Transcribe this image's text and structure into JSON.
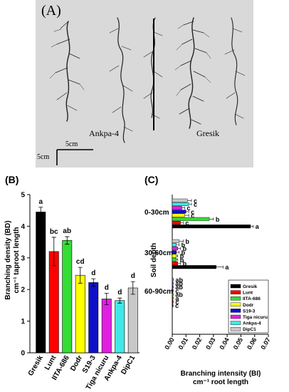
{
  "panel_a": {
    "label": "(A)",
    "left_caption": "Ankpa-4",
    "right_caption": "Gresik",
    "scale_top": "5cm",
    "scale_left": "5cm"
  },
  "colors": {
    "Gresik": "#000000",
    "Lunt": "#ff0000",
    "IITA-686": "#33dd33",
    "Dodr": "#ffff00",
    "S19-3": "#1010c8",
    "Tiga nicuru": "#e020e0",
    "Ankpa-4": "#40e8e8",
    "DipC1": "#c8c8c8"
  },
  "chart_data": [
    {
      "type": "bar",
      "panel_label": "(B)",
      "ylabel_line1": "Branching density (BD)",
      "ylabel_line2": "cm⁻¹ taproot length",
      "ylim": [
        0,
        5
      ],
      "yticks": [
        "0",
        "1",
        "2",
        "3",
        "4",
        "5"
      ],
      "categories": [
        "Gresik",
        "Lunt",
        "IITA-686",
        "Dodr",
        "S19-3",
        "Tiga nicuru",
        "Ankpa-4",
        "DipC1"
      ],
      "values": [
        4.45,
        3.2,
        3.55,
        2.45,
        2.22,
        1.7,
        1.65,
        2.05
      ],
      "errors": [
        0.15,
        0.45,
        0.12,
        0.25,
        0.12,
        0.18,
        0.08,
        0.2
      ],
      "letters": [
        "a",
        "bc",
        "ab",
        "cd",
        "d",
        "d",
        "d",
        "d"
      ]
    },
    {
      "type": "bar",
      "orientation": "horizontal",
      "panel_label": "(C)",
      "ylabel": "Soil depth",
      "xlabel_line1": "Branching intensity (BI)",
      "xlabel_line2": "cm⁻¹ root length",
      "xlim": [
        0,
        0.07
      ],
      "xticks": [
        "0.00",
        "0.01",
        "0.02",
        "0.03",
        "0.04",
        "0.05",
        "0.06",
        "0.07"
      ],
      "groups": [
        "0-30cm",
        "30-60cm",
        "60-90cm"
      ],
      "series_names": [
        "DipC1",
        "Ankpa-4",
        "Tiga nicuru",
        "S19-3",
        "Dodr",
        "IITA-686",
        "Lunt",
        "Gresik"
      ],
      "legend": [
        "Gresik",
        "Lunt",
        "IITA-686",
        "Dodr",
        "S19-3",
        "Tiga nicuru",
        "Ankpa-4",
        "DipC1"
      ],
      "values": [
        [
          0.011,
          0.012,
          0.007,
          0.01,
          0.009,
          0.027,
          0.006,
          0.057
        ],
        [
          0.005,
          0.003,
          0.004,
          0.003,
          0.003,
          0.003,
          0.004,
          0.032
        ],
        [
          0.0005,
          0.0004,
          0.0004,
          0.0004,
          0.0004,
          0.0004,
          0.0004,
          0.0003
        ]
      ],
      "errors": [
        [
          0.003,
          0.002,
          0.002,
          0.002,
          0.003,
          0.003,
          0.002,
          0.002
        ],
        [
          0.003,
          0.002,
          0.002,
          0.002,
          0.001,
          0.001,
          0.002,
          0.005
        ],
        [
          0.0003,
          0.0003,
          0.0003,
          0.0003,
          0.0003,
          0.0003,
          0.0003,
          0.0003
        ]
      ],
      "letters": [
        [
          "c",
          "c",
          "c",
          "c",
          "c",
          "b",
          "c",
          "a"
        ],
        [
          "b",
          "b",
          "b",
          "b",
          "b",
          "b",
          "b",
          "a"
        ],
        [
          "ab",
          "ab",
          "ab",
          "c",
          "ab",
          "a",
          "c",
          "c"
        ]
      ]
    }
  ]
}
